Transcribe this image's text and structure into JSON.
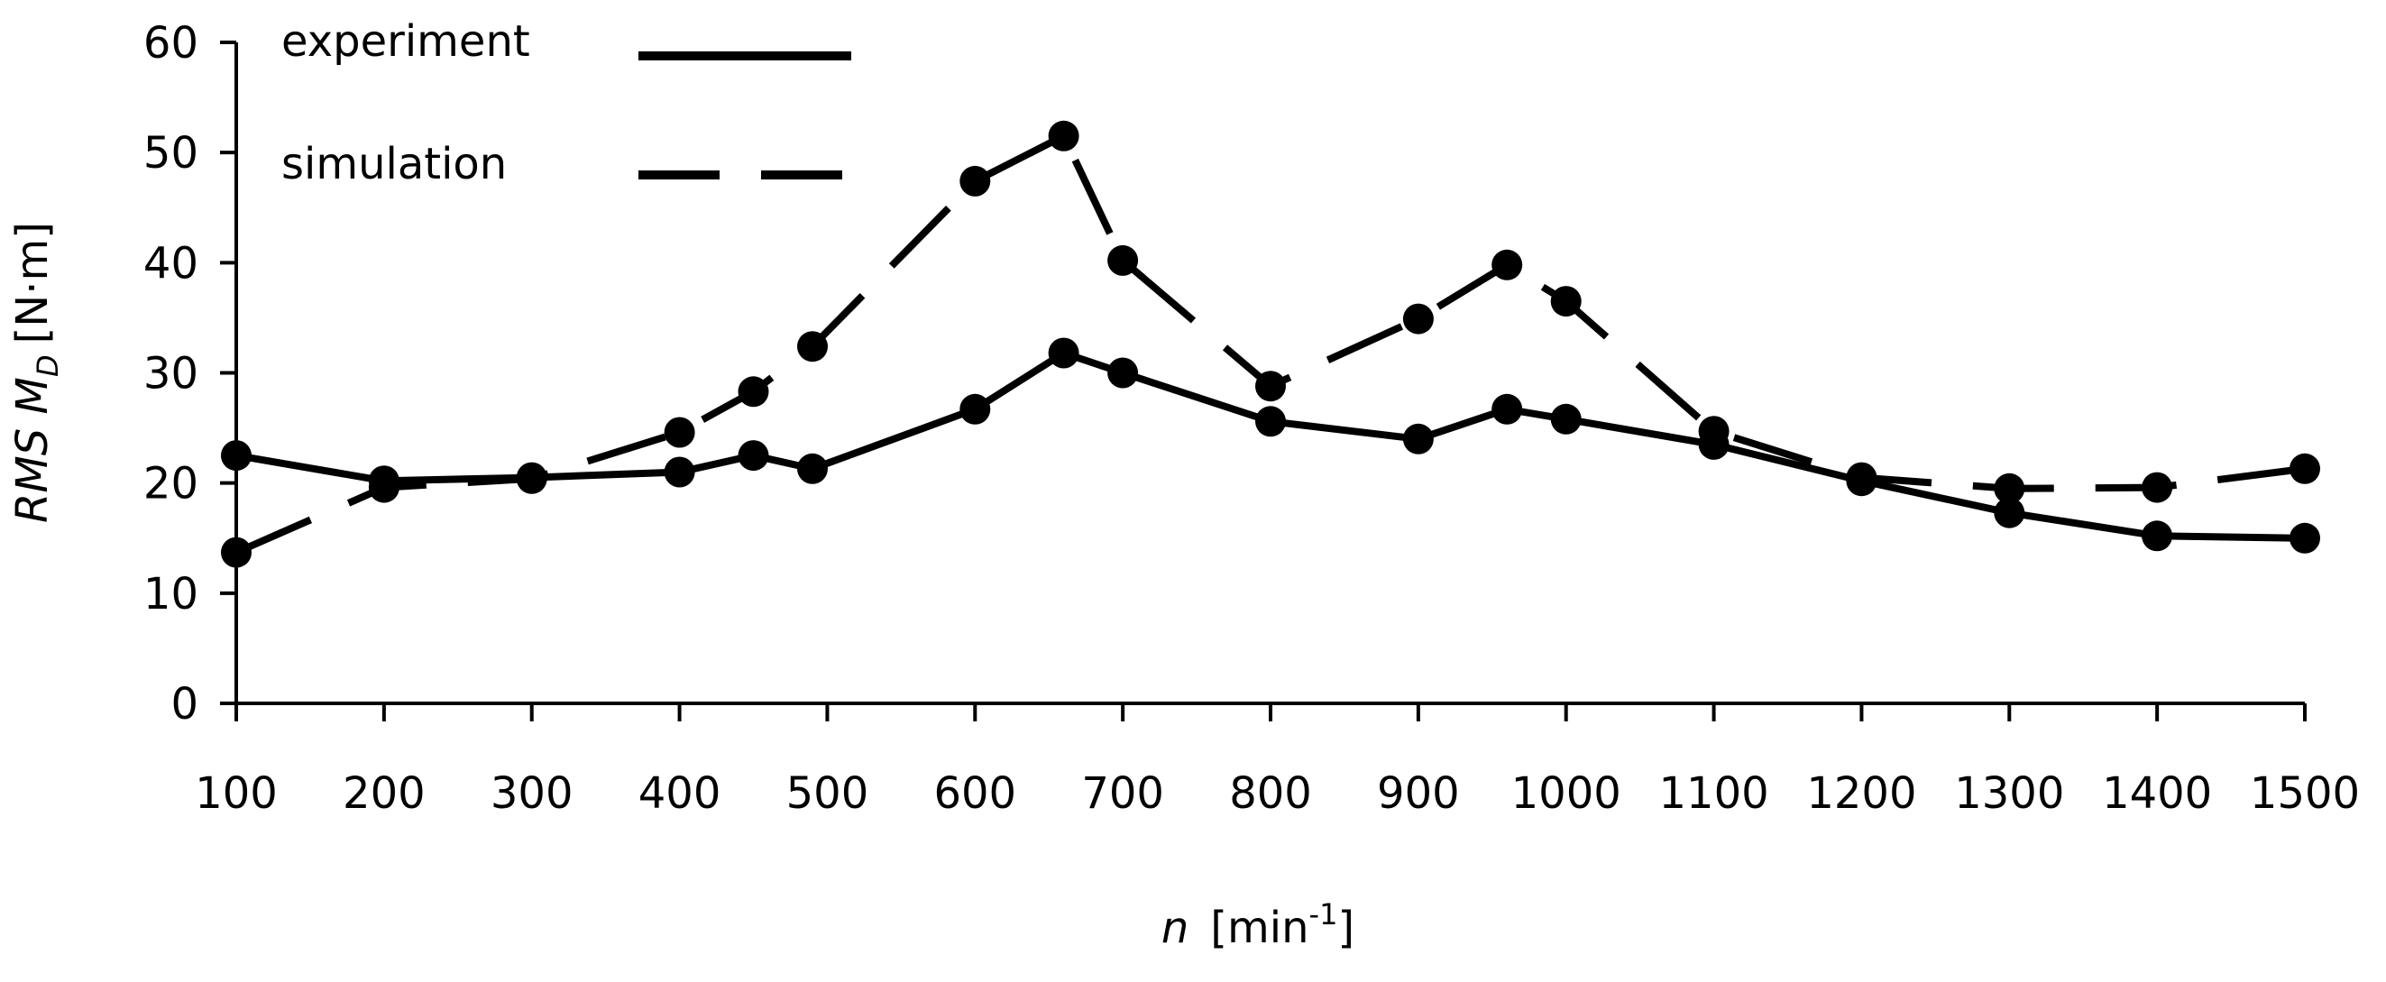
{
  "chart_data": {
    "type": "line",
    "title": "",
    "xlabel": {
      "var": "n",
      "unit_open": "[min",
      "unit_sup": "-1",
      "unit_close": "]"
    },
    "ylabel": {
      "prefix": "RMS M",
      "subscript": "D",
      "unit": "[N·m]"
    },
    "xlim": [
      100,
      1500
    ],
    "ylim": [
      0,
      60
    ],
    "x_ticks": [
      "100",
      "200",
      "300",
      "400",
      "500",
      "600",
      "700",
      "800",
      "900",
      "1000",
      "1100",
      "1200",
      "1300",
      "1400",
      "1500"
    ],
    "y_ticks": [
      "0",
      "10",
      "20",
      "30",
      "40",
      "50",
      "60"
    ],
    "grid": false,
    "legend_position": "top-left",
    "series": [
      {
        "name": "experiment",
        "style": "solid",
        "color": "#000000",
        "x": [
          100,
          200,
          300,
          400,
          450,
          490,
          600,
          660,
          700,
          800,
          900,
          960,
          1000,
          1100,
          1200,
          1300,
          1400,
          1500
        ],
        "y": [
          22.5,
          20.2,
          20.5,
          21.0,
          22.5,
          21.3,
          26.7,
          31.8,
          30.0,
          25.6,
          24.0,
          26.7,
          25.8,
          23.5,
          20.2,
          17.3,
          15.2,
          15.0
        ]
      },
      {
        "name": "simulation",
        "style": "dashed",
        "color": "#000000",
        "x": [
          100,
          200,
          300,
          400,
          450,
          490,
          600,
          660,
          700,
          800,
          900,
          960,
          1000,
          1100,
          1200,
          1300,
          1400,
          1500
        ],
        "y": [
          13.7,
          19.6,
          20.4,
          24.6,
          28.3,
          32.4,
          47.4,
          51.5,
          40.2,
          28.8,
          34.9,
          39.8,
          36.5,
          24.7,
          20.5,
          19.5,
          19.6,
          21.3
        ]
      }
    ]
  }
}
